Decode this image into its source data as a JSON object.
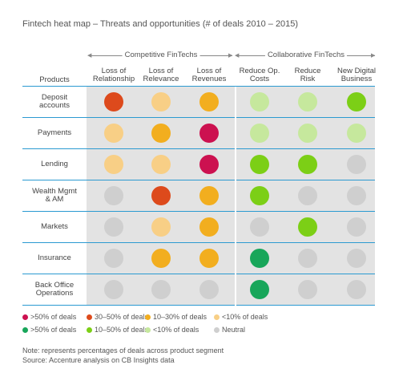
{
  "title": "Fintech heat map – Threats and opportunities (# of deals 2010 – 2015)",
  "groups": [
    {
      "label": "Competitive FinTechs"
    },
    {
      "label": "Collaborative FinTechs"
    }
  ],
  "products_header": "Products",
  "colors": {
    "red_gt50": "#cc1150",
    "red_30_50": "#dd4a1c",
    "orange_10_30": "#f2ae1f",
    "peach_lt10": "#f8cf86",
    "green_gt50": "#18a65a",
    "green_10_50": "#7ccf16",
    "lightgreen_lt10": "#c6e89d",
    "neutral": "#cfcfcf"
  },
  "chart_data": {
    "type": "heatmap",
    "title": "Fintech heat map – Threats and opportunities (# of deals 2010 – 2015)",
    "columns": [
      {
        "label": "Loss of Relationship",
        "line1": "Loss of",
        "line2": "Relationship",
        "group": "Competitive FinTechs"
      },
      {
        "label": "Loss of Relevance",
        "line1": "Loss of",
        "line2": "Relevance",
        "group": "Competitive FinTechs"
      },
      {
        "label": "Loss of Revenues",
        "line1": "Loss of",
        "line2": "Revenues",
        "group": "Competitive FinTechs"
      },
      {
        "label": "Reduce Op. Costs",
        "line1": "Reduce Op.",
        "line2": "Costs",
        "group": "Collaborative FinTechs"
      },
      {
        "label": "Reduce Risk",
        "line1": "Reduce",
        "line2": "Risk",
        "group": "Collaborative FinTechs"
      },
      {
        "label": "New Digital Business",
        "line1": "New Digital",
        "line2": "Business",
        "group": "Collaborative FinTechs"
      }
    ],
    "rows": [
      {
        "label": "Deposit accounts",
        "line1": "Deposit",
        "line2": "accounts",
        "cells": [
          "30-50% of deals",
          "<10% of deals",
          "10-30% of deals",
          "<10% of deals (green)",
          "<10% of deals (green)",
          "10-50% of deals (green)"
        ]
      },
      {
        "label": "Payments",
        "line1": "Payments",
        "line2": "",
        "cells": [
          "<10% of deals",
          "10-30% of deals",
          ">50% of deals",
          "<10% of deals (green)",
          "<10% of deals (green)",
          "<10% of deals (green)"
        ]
      },
      {
        "label": "Lending",
        "line1": "Lending",
        "line2": "",
        "cells": [
          "<10% of deals",
          "<10% of deals",
          ">50% of deals",
          "10-50% of deals (green)",
          "10-50% of deals (green)",
          "Neutral"
        ]
      },
      {
        "label": "Wealth Mgmt & AM",
        "line1": "Wealth Mgmt",
        "line2": "& AM",
        "cells": [
          "Neutral",
          "30-50% of deals",
          "10-30% of deals",
          "10-50% of deals (green)",
          "Neutral",
          "Neutral"
        ]
      },
      {
        "label": "Markets",
        "line1": "Markets",
        "line2": "",
        "cells": [
          "Neutral",
          "<10% of deals",
          "10-30% of deals",
          "Neutral",
          "10-50% of deals (green)",
          "Neutral"
        ]
      },
      {
        "label": "Insurance",
        "line1": "Insurance",
        "line2": "",
        "cells": [
          "Neutral",
          "10-30% of deals",
          "10-30% of deals",
          ">50% of deals (green)",
          "Neutral",
          "Neutral"
        ]
      },
      {
        "label": "Back Office Operations",
        "line1": "Back Office",
        "line2": "Operations",
        "cells": [
          "Neutral",
          "Neutral",
          "Neutral",
          ">50% of deals (green)",
          "Neutral",
          "Neutral"
        ]
      }
    ],
    "legend": [
      {
        "key": "red_gt50",
        "label": ">50% of deals"
      },
      {
        "key": "red_30_50",
        "label": "30–50% of deals"
      },
      {
        "key": "orange_10_30",
        "label": "10–30% of deals"
      },
      {
        "key": "peach_lt10",
        "label": "<10% of deals"
      },
      {
        "key": "green_gt50",
        "label": ">50% of deals"
      },
      {
        "key": "green_10_50",
        "label": "10–50% of deals"
      },
      {
        "key": "lightgreen_lt10",
        "label": "<10% of deals"
      },
      {
        "key": "neutral",
        "label": "Neutral"
      }
    ]
  },
  "note": "Note: represents percentages of deals across product segment",
  "source": "Source: Accenture analysis on CB Insights data"
}
